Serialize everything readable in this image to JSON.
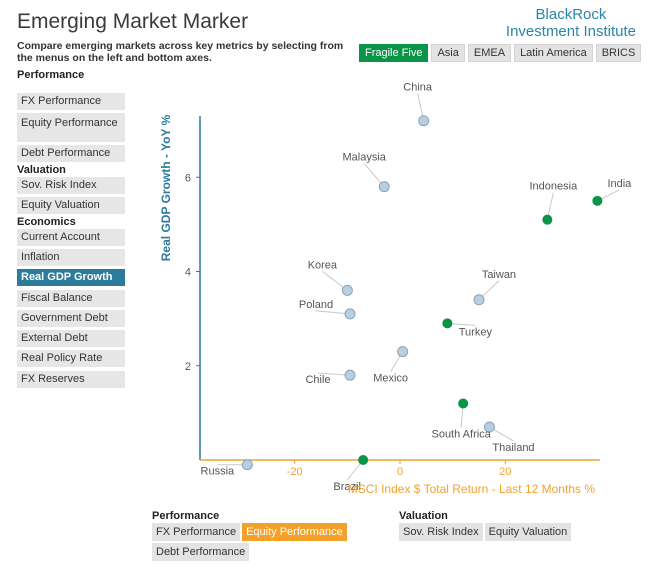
{
  "header": {
    "title": "Emerging Market Marker",
    "subtitle": "Compare emerging markets across key metrics by selecting from the menus on the left and bottom axes.",
    "brand_line1": "BlackRock",
    "brand_line2": "Investment Institute"
  },
  "regions": [
    {
      "label": "Fragile Five",
      "active": true
    },
    {
      "label": "Asia",
      "active": false
    },
    {
      "label": "EMEA",
      "active": false
    },
    {
      "label": "Latin America",
      "active": false
    },
    {
      "label": "BRICS",
      "active": false
    }
  ],
  "sidebar": {
    "performance_heading": "Performance",
    "valuation_heading": "Valuation",
    "economics_heading": "Economics",
    "items": [
      {
        "label": "FX Performance",
        "active": false
      },
      {
        "label": "Equity Performance",
        "active": false
      },
      {
        "label": "Debt Performance",
        "active": false
      },
      {
        "label": "Sov. Risk Index",
        "active": false
      },
      {
        "label": "Equity Valuation",
        "active": false
      },
      {
        "label": "Current Account",
        "active": false
      },
      {
        "label": "Inflation",
        "active": false
      },
      {
        "label": "Real GDP Growth",
        "active": true
      },
      {
        "label": "Fiscal Balance",
        "active": false
      },
      {
        "label": "Government Debt",
        "active": false
      },
      {
        "label": "External Debt",
        "active": false
      },
      {
        "label": "Real Policy Rate",
        "active": false
      },
      {
        "label": "FX Reserves",
        "active": false
      }
    ]
  },
  "bottom": {
    "performance_heading": "Performance",
    "valuation_heading": "Valuation",
    "performance_buttons": [
      {
        "label": "FX Performance",
        "active": false
      },
      {
        "label": "Equity Performance",
        "active": true
      },
      {
        "label": "Debt Performance",
        "active": false
      }
    ],
    "valuation_buttons": [
      {
        "label": "Sov. Risk Index",
        "active": false
      },
      {
        "label": "Equity Valuation",
        "active": false
      }
    ]
  },
  "colors": {
    "fragile": "#0a9447",
    "other": "#b8cfe2",
    "y_axis": "#2c7b9c",
    "x_axis": "#f4a12c",
    "active_menu": "#2c7b9c"
  },
  "chart_data": {
    "type": "scatter",
    "xlabel": "MSCI Index $ Total Return - Last 12 Months %",
    "ylabel": "Real GDP Growth - YoY %",
    "xlim": [
      -38,
      38
    ],
    "ylim": [
      0,
      7.3
    ],
    "xticks": [
      -20,
      0,
      20
    ],
    "yticks": [
      2,
      4,
      6
    ],
    "grid": false,
    "points": [
      {
        "name": "China",
        "x": 4.5,
        "y": 7.2,
        "fragile": false
      },
      {
        "name": "Malaysia",
        "x": -3,
        "y": 5.8,
        "fragile": false
      },
      {
        "name": "India",
        "x": 37.5,
        "y": 5.5,
        "fragile": true
      },
      {
        "name": "Indonesia",
        "x": 28,
        "y": 5.1,
        "fragile": true
      },
      {
        "name": "Korea",
        "x": -10,
        "y": 3.6,
        "fragile": false
      },
      {
        "name": "Poland",
        "x": -9.5,
        "y": 3.1,
        "fragile": false
      },
      {
        "name": "Taiwan",
        "x": 15,
        "y": 3.4,
        "fragile": false
      },
      {
        "name": "Turkey",
        "x": 9,
        "y": 2.9,
        "fragile": true
      },
      {
        "name": "Mexico",
        "x": 0.5,
        "y": 2.3,
        "fragile": false
      },
      {
        "name": "Chile",
        "x": -9.5,
        "y": 1.8,
        "fragile": false
      },
      {
        "name": "South Africa",
        "x": 12,
        "y": 1.2,
        "fragile": true
      },
      {
        "name": "Thailand",
        "x": 17,
        "y": 0.7,
        "fragile": false
      },
      {
        "name": "Russia",
        "x": -29,
        "y": -0.1,
        "fragile": false
      },
      {
        "name": "Brazil",
        "x": -7,
        "y": 0.0,
        "fragile": true
      }
    ]
  }
}
